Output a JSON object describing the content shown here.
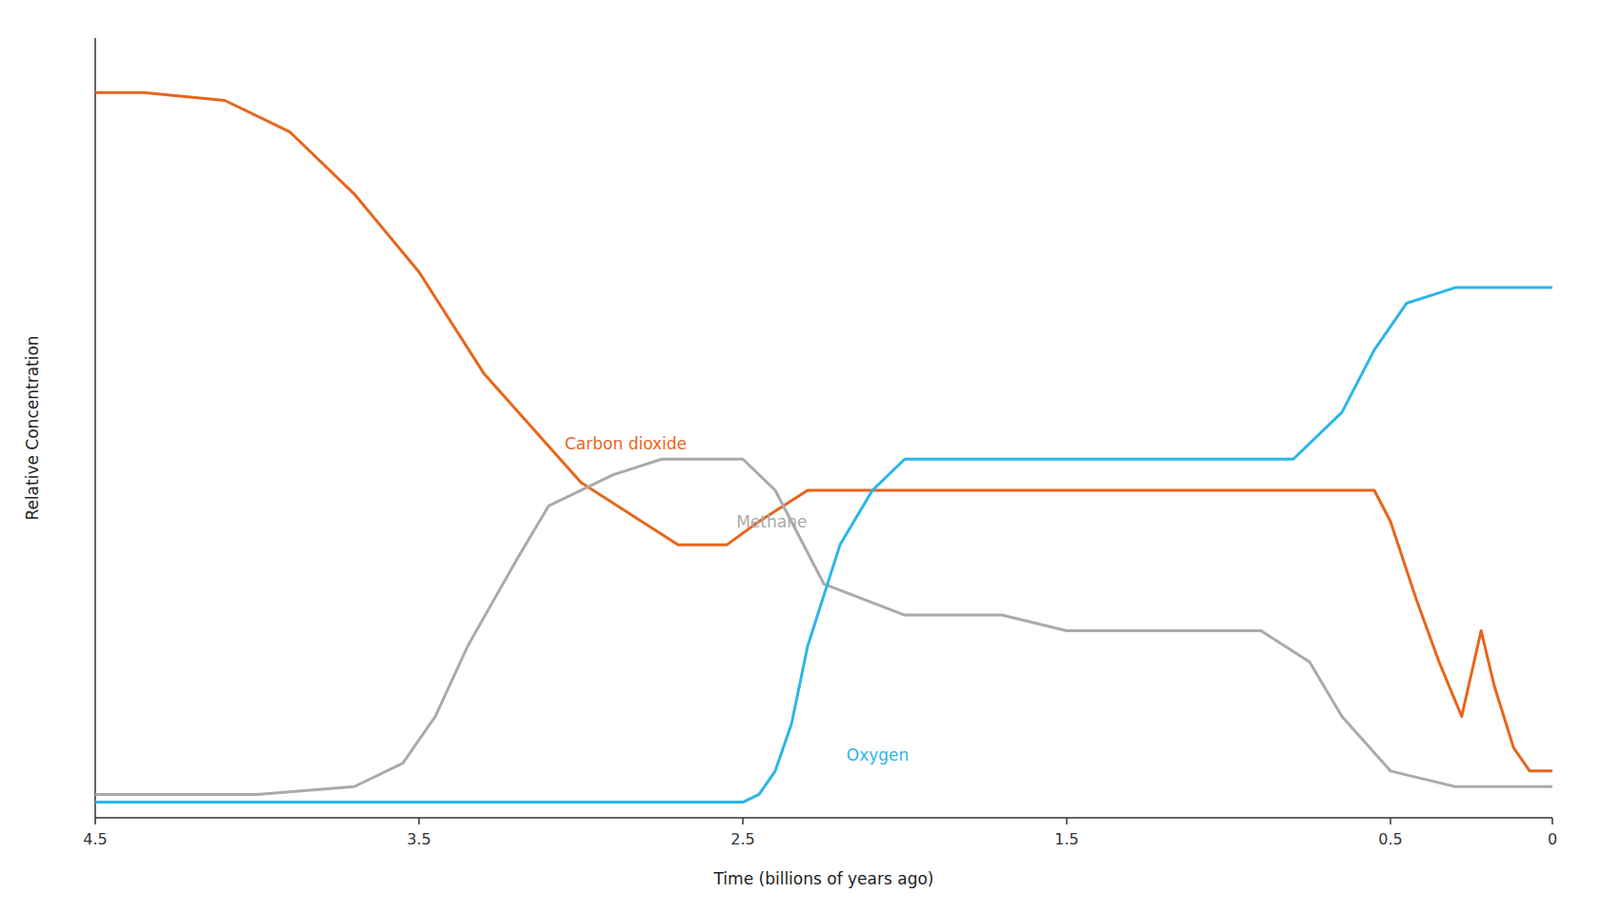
{
  "chart_data": {
    "type": "line",
    "xlabel": "Time (billions of years ago)",
    "ylabel": "Relative Concentration",
    "xlim": [
      4.5,
      0
    ],
    "ylim": [
      0,
      1
    ],
    "xticks": [
      4.5,
      3.5,
      2.5,
      1.5,
      0.5,
      0
    ],
    "tick_labels": "x",
    "grid": false,
    "series": [
      {
        "color": "#e8651a",
        "x": [
          4.5,
          4.35,
          4.1,
          3.9,
          3.7,
          3.5,
          3.3,
          3.0,
          2.7,
          2.55,
          2.45,
          2.3,
          2.0,
          1.8,
          1.5,
          0.8,
          0.6,
          0.55,
          0.5,
          0.42,
          0.35,
          0.28,
          0.22,
          0.18,
          0.12,
          0.07,
          0.02,
          0.0
        ],
        "values": [
          0.93,
          0.93,
          0.92,
          0.88,
          0.8,
          0.7,
          0.57,
          0.43,
          0.35,
          0.35,
          0.38,
          0.42,
          0.42,
          0.42,
          0.42,
          0.42,
          0.42,
          0.42,
          0.38,
          0.28,
          0.2,
          0.13,
          0.24,
          0.17,
          0.09,
          0.06,
          0.06,
          0.06
        ]
      },
      {
        "color": "#aaaaaa",
        "x": [
          4.5,
          4.0,
          3.7,
          3.55,
          3.45,
          3.35,
          3.2,
          3.1,
          2.9,
          2.75,
          2.6,
          2.5,
          2.4,
          2.25,
          2.0,
          1.7,
          1.5,
          0.9,
          0.75,
          0.65,
          0.5,
          0.3,
          0.0
        ],
        "values": [
          0.03,
          0.03,
          0.04,
          0.07,
          0.13,
          0.22,
          0.33,
          0.4,
          0.44,
          0.46,
          0.46,
          0.46,
          0.42,
          0.3,
          0.26,
          0.26,
          0.24,
          0.24,
          0.2,
          0.13,
          0.06,
          0.04,
          0.04
        ]
      },
      {
        "color": "#29b6e8",
        "x": [
          4.5,
          2.5,
          2.45,
          2.4,
          2.35,
          2.3,
          2.2,
          2.1,
          2.0,
          1.8,
          1.6,
          1.5,
          0.8,
          0.65,
          0.55,
          0.45,
          0.3,
          0.0
        ],
        "values": [
          0.02,
          0.02,
          0.03,
          0.06,
          0.12,
          0.22,
          0.35,
          0.42,
          0.46,
          0.46,
          0.46,
          0.46,
          0.46,
          0.52,
          0.6,
          0.66,
          0.68,
          0.68
        ]
      }
    ],
    "annotations": [
      {
        "text": "Carbon dioxide",
        "x": 3.05,
        "y": 0.48,
        "color": "#e8651a"
      },
      {
        "text": "Methane",
        "x": 2.52,
        "y": 0.38,
        "color": "#aaaaaa"
      },
      {
        "text": "Oxygen",
        "x": 2.18,
        "y": 0.08,
        "color": "#29b6e8"
      }
    ]
  }
}
